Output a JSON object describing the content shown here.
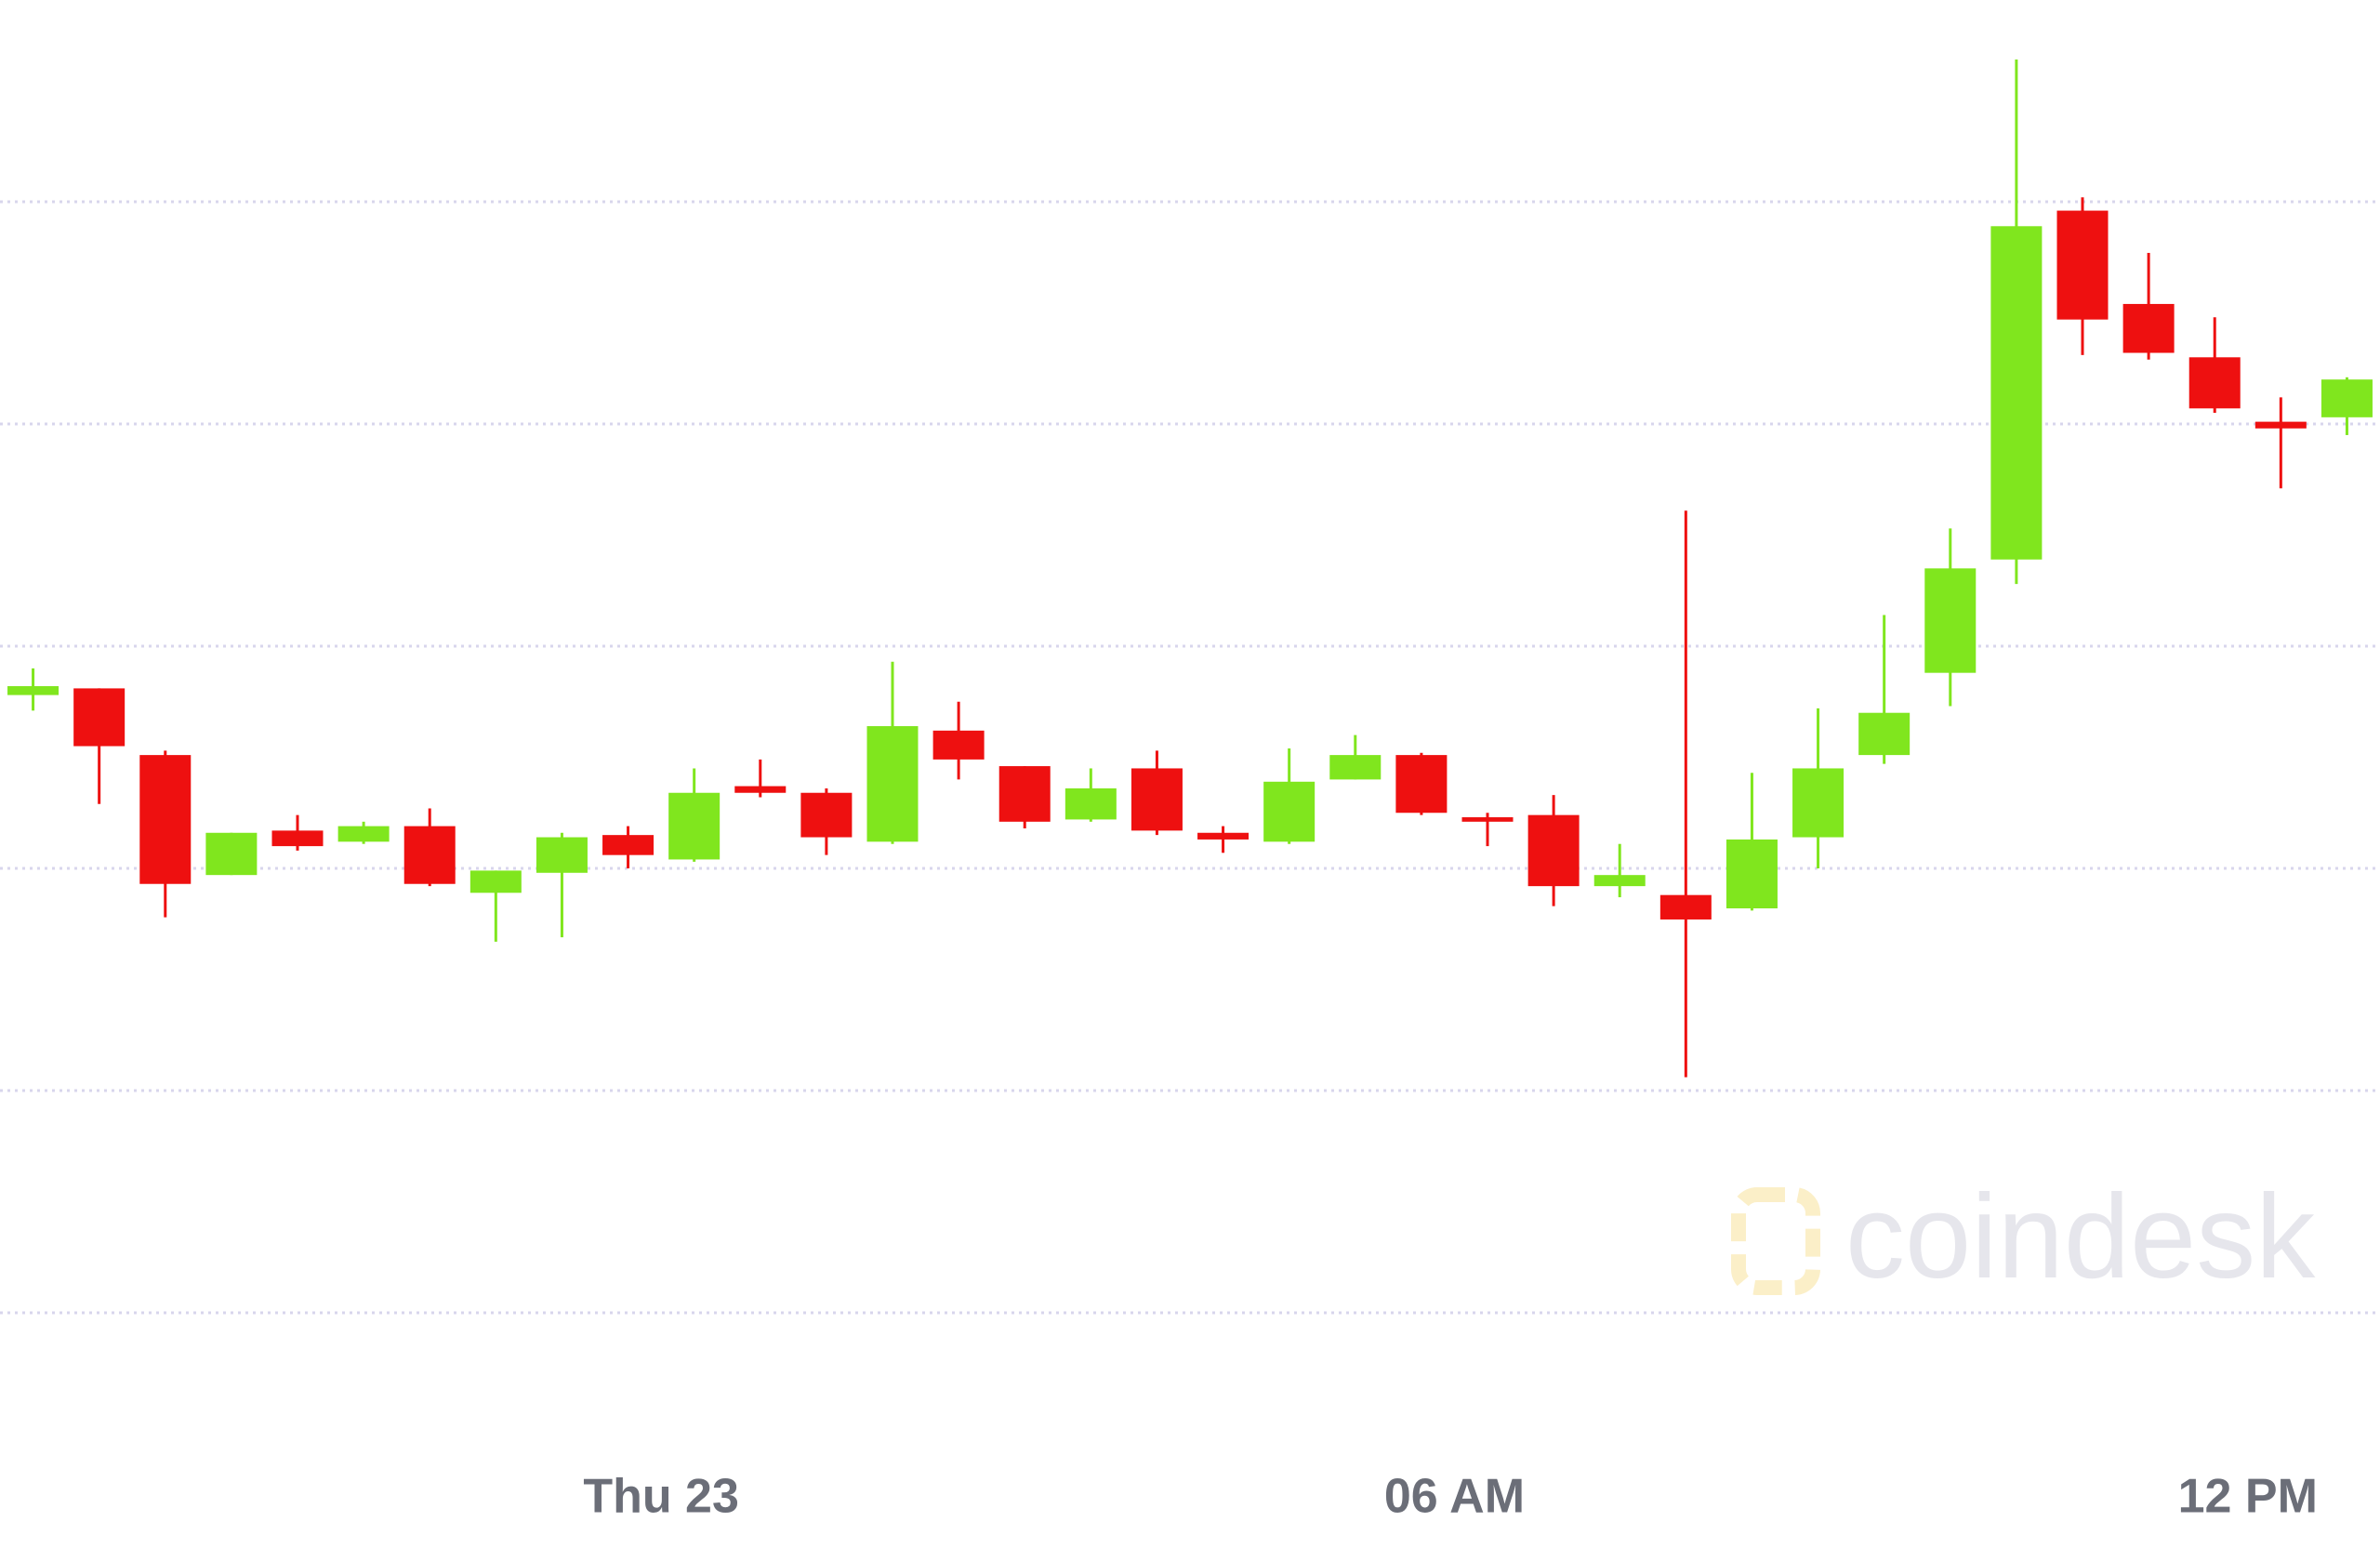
{
  "chart_data": {
    "type": "candlestick",
    "watermark": "coindesk",
    "xlim": [
      -5,
      13
    ],
    "xticks": [
      {
        "value": 0,
        "label": "Thu 23"
      },
      {
        "value": 6,
        "label": "06 AM"
      },
      {
        "value": 12,
        "label": "12 PM"
      }
    ],
    "ylim": [
      -1,
      6
    ],
    "yticks": [
      0,
      1,
      2,
      3,
      4,
      5
    ],
    "grid": true,
    "up_color": "#80e61e",
    "down_color": "#ee1010",
    "grid_color": "#d8d6ec",
    "x": [
      -4.75,
      -4.25,
      -3.75,
      -3.25,
      -2.75,
      -2.25,
      -1.75,
      -1.25,
      -0.75,
      -0.25,
      0.25,
      0.75,
      1.25,
      1.75,
      2.25,
      2.75,
      3.25,
      3.75,
      4.25,
      4.75,
      5.25,
      5.75,
      6.25,
      6.75,
      7.25,
      7.75,
      8.25,
      8.75,
      9.25,
      9.75,
      10.25,
      10.75,
      11.25,
      11.75,
      12.25,
      12.75
    ],
    "open": [
      2.78,
      2.81,
      2.51,
      1.97,
      2.17,
      2.12,
      2.19,
      1.89,
      1.98,
      2.15,
      2.04,
      2.37,
      2.34,
      2.12,
      2.62,
      2.46,
      2.22,
      2.45,
      2.16,
      2.12,
      2.4,
      2.51,
      2.23,
      2.24,
      1.92,
      1.88,
      1.82,
      2.14,
      2.51,
      2.88,
      3.39,
      4.96,
      4.54,
      4.3,
      4.01,
      4.03
    ],
    "high": [
      2.9,
      2.81,
      2.53,
      2.16,
      2.24,
      2.21,
      2.27,
      1.99,
      2.16,
      2.19,
      2.45,
      2.49,
      2.36,
      2.93,
      2.75,
      2.46,
      2.45,
      2.53,
      2.19,
      2.54,
      2.6,
      2.52,
      2.25,
      2.33,
      2.11,
      3.61,
      2.43,
      2.72,
      3.14,
      3.53,
      5.64,
      5.02,
      4.77,
      4.48,
      4.12,
      4.21
    ],
    "low": [
      2.71,
      2.29,
      1.78,
      1.97,
      2.08,
      2.11,
      1.92,
      1.67,
      1.69,
      2.0,
      2.03,
      2.32,
      2.06,
      2.11,
      2.4,
      2.18,
      2.21,
      2.15,
      2.07,
      2.11,
      2.4,
      2.24,
      2.1,
      1.83,
      1.87,
      1.06,
      1.81,
      2.0,
      2.47,
      2.73,
      3.28,
      4.31,
      4.29,
      4.05,
      3.71,
      3.95
    ],
    "close": [
      2.82,
      2.55,
      1.93,
      2.16,
      2.1,
      2.19,
      1.93,
      1.99,
      2.14,
      2.06,
      2.34,
      2.34,
      2.14,
      2.64,
      2.49,
      2.21,
      2.36,
      2.17,
      2.13,
      2.39,
      2.51,
      2.25,
      2.21,
      1.92,
      1.97,
      1.77,
      2.13,
      2.45,
      2.7,
      3.35,
      4.89,
      4.47,
      4.32,
      4.07,
      3.98,
      4.2
    ]
  }
}
